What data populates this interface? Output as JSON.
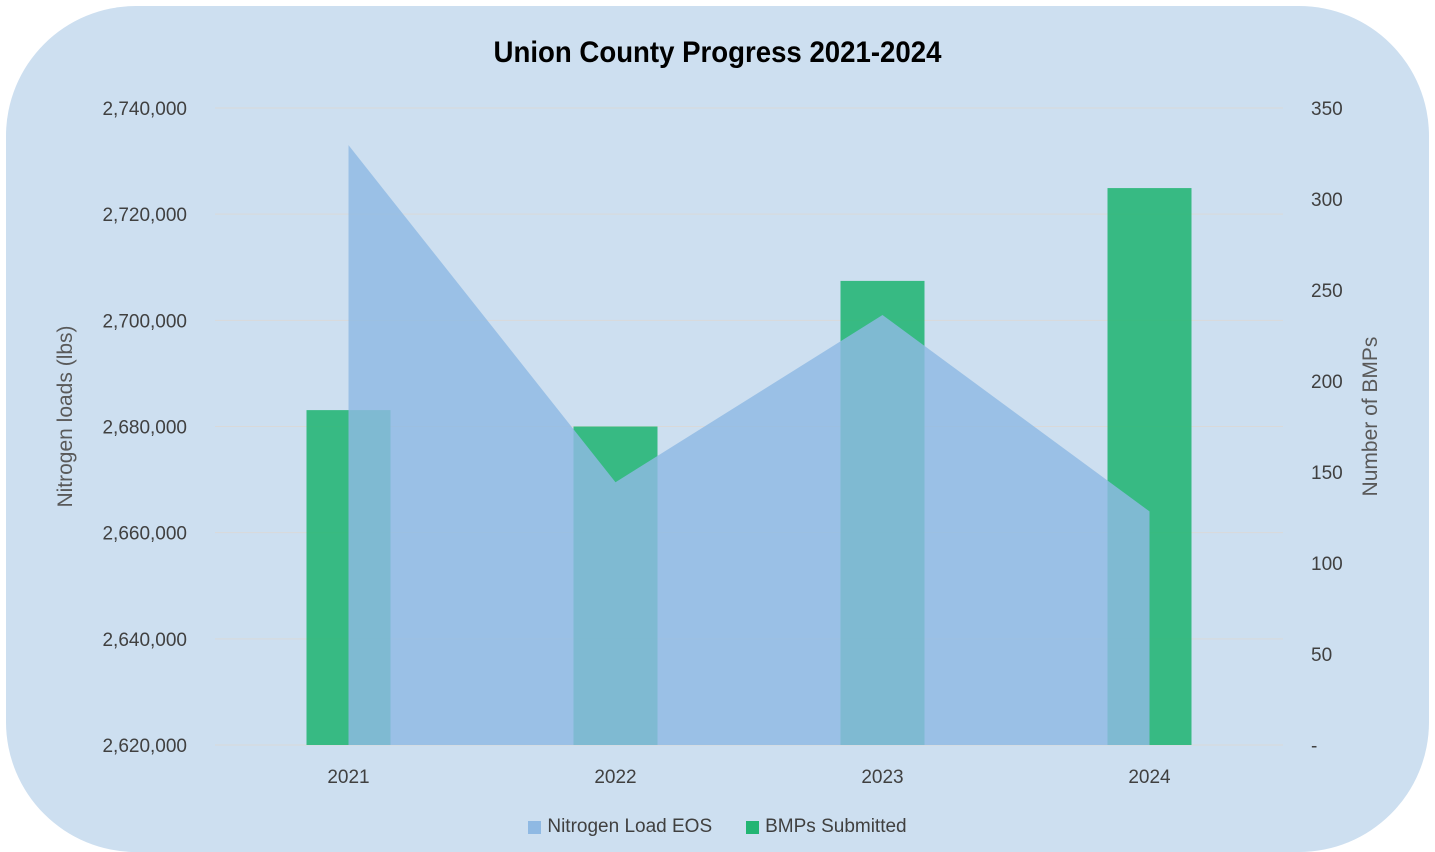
{
  "chart_data": {
    "type": "bar",
    "title": "Union County Progress 2021-2024",
    "categories": [
      "2021",
      "2022",
      "2023",
      "2024"
    ],
    "left_axis": {
      "label": "Nitrogen loads (lbs)",
      "min": 2620000,
      "max": 2740000,
      "ticks": [
        "2,620,000",
        "2,640,000",
        "2,660,000",
        "2,680,000",
        "2,700,000",
        "2,720,000",
        "2,740,000"
      ],
      "tick_values": [
        2620000,
        2640000,
        2660000,
        2680000,
        2700000,
        2720000,
        2740000
      ]
    },
    "right_axis": {
      "label": "Number of BMPs",
      "min": 0,
      "max": 350,
      "ticks": [
        "-",
        "50",
        "100",
        "150",
        "200",
        "250",
        "300",
        "350"
      ],
      "tick_values": [
        0,
        50,
        100,
        150,
        200,
        250,
        300,
        350
      ]
    },
    "series": [
      {
        "name": "Nitrogen Load EOS",
        "type": "area",
        "axis": "left",
        "color": "#8fb9e3",
        "values": [
          2733000,
          2669500,
          2701000,
          2664000
        ]
      },
      {
        "name": "BMPs Submitted",
        "type": "bar",
        "axis": "right",
        "color": "#22b573",
        "values": [
          184,
          175,
          255,
          306
        ]
      }
    ],
    "grid": true,
    "legend_position": "bottom"
  }
}
